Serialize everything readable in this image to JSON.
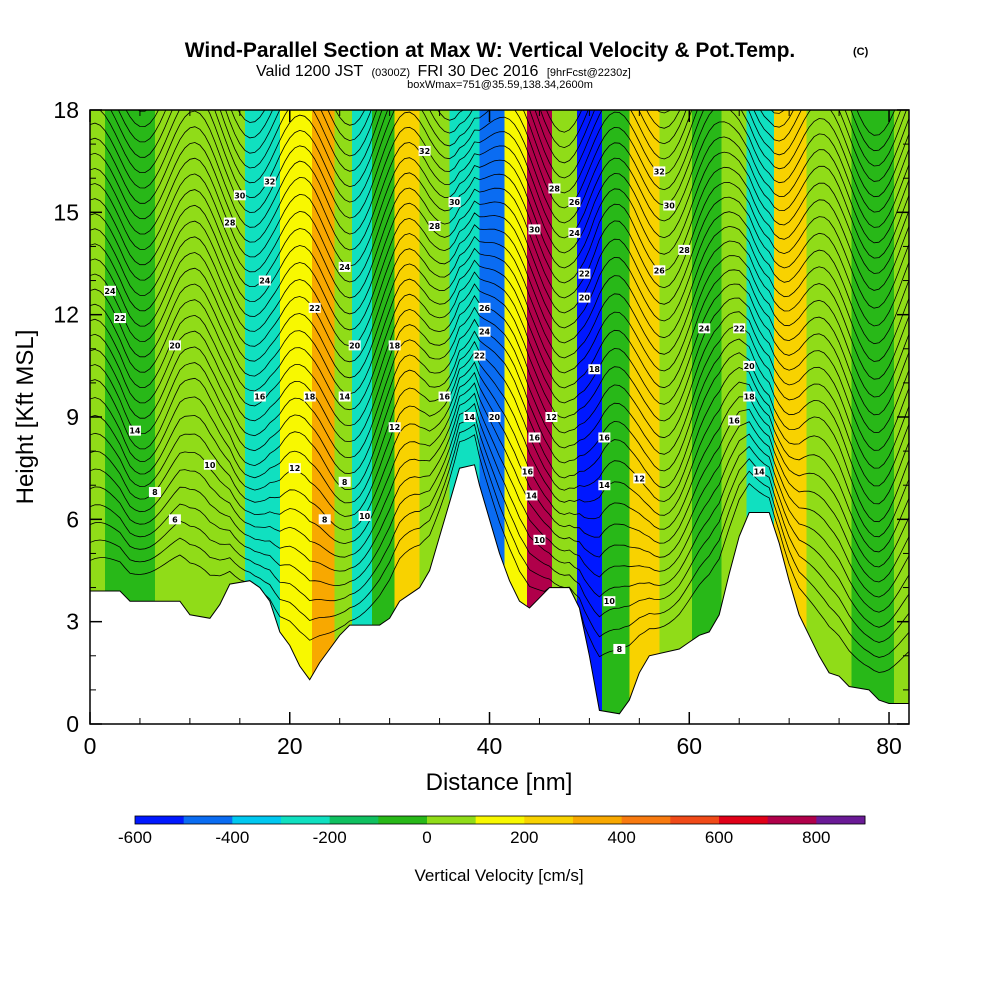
{
  "header": {
    "title": "Wind-Parallel Section at Max W: Vertical Velocity & Pot.Temp.",
    "copyright": "(C)",
    "subtitle_main": "Valid 1200 JST",
    "subtitle_utc": "(0300Z)",
    "subtitle_date": "FRI 30 Dec 2016",
    "subtitle_fcst": "[9hrFcst@2230z]",
    "subtitle_box": "boxWmax=751@35.59,138.34,2600m"
  },
  "chart_data": {
    "type": "heatmap",
    "title": "Wind-Parallel Section at Max W: Vertical Velocity & Pot.Temp.",
    "xlabel": "Distance [nm]",
    "ylabel": "Height [Kft MSL]",
    "xlim": [
      0,
      82
    ],
    "ylim": [
      0,
      18
    ],
    "xticks": [
      "0",
      "20",
      "40",
      "60",
      "80"
    ],
    "yticks": [
      "0",
      "3",
      "6",
      "9",
      "12",
      "15",
      "18"
    ],
    "colorbar": {
      "label": "Vertical Velocity [cm/s]",
      "levels": [
        -600,
        -500,
        -400,
        -300,
        -200,
        -100,
        0,
        100,
        200,
        300,
        400,
        500,
        600,
        700,
        800,
        900
      ],
      "colors": [
        "#0018ff",
        "#0a6cf2",
        "#00c8f0",
        "#10e0c0",
        "#10c060",
        "#28b818",
        "#90dc18",
        "#f8f800",
        "#f8d200",
        "#f8a800",
        "#f87a10",
        "#f04a18",
        "#e00018",
        "#b0004a",
        "#6a1a96"
      ],
      "ticks": [
        "-600",
        "-400",
        "-200",
        "0",
        "200",
        "400",
        "600",
        "800"
      ]
    },
    "terrain": [
      [
        0,
        3.9
      ],
      [
        3,
        3.9
      ],
      [
        4,
        3.6
      ],
      [
        9,
        3.6
      ],
      [
        10,
        3.2
      ],
      [
        12,
        3.1
      ],
      [
        13,
        3.5
      ],
      [
        14,
        4.1
      ],
      [
        16,
        4.2
      ],
      [
        17,
        4.0
      ],
      [
        18,
        3.6
      ],
      [
        19,
        2.7
      ],
      [
        20,
        2.3
      ],
      [
        21,
        1.7
      ],
      [
        22,
        1.3
      ],
      [
        23,
        1.8
      ],
      [
        24,
        2.2
      ],
      [
        25,
        2.6
      ],
      [
        26,
        2.9
      ],
      [
        29,
        2.9
      ],
      [
        30,
        3.1
      ],
      [
        31,
        3.6
      ],
      [
        33,
        4.0
      ],
      [
        34,
        4.5
      ],
      [
        35,
        5.5
      ],
      [
        36,
        6.5
      ],
      [
        37,
        7.5
      ],
      [
        38.5,
        7.6
      ],
      [
        39,
        7.0
      ],
      [
        40,
        6.0
      ],
      [
        41,
        5.0
      ],
      [
        42,
        4.2
      ],
      [
        43,
        3.6
      ],
      [
        44,
        3.4
      ],
      [
        45,
        3.7
      ],
      [
        46,
        4.0
      ],
      [
        48,
        4.0
      ],
      [
        49,
        3.4
      ],
      [
        50,
        2.0
      ],
      [
        51,
        0.4
      ],
      [
        53,
        0.3
      ],
      [
        54,
        0.7
      ],
      [
        55,
        1.5
      ],
      [
        56,
        2.0
      ],
      [
        59,
        2.2
      ],
      [
        60,
        2.4
      ],
      [
        61,
        2.6
      ],
      [
        62,
        2.7
      ],
      [
        63,
        3.2
      ],
      [
        64,
        4.4
      ],
      [
        65,
        5.5
      ],
      [
        66,
        6.2
      ],
      [
        68,
        6.2
      ],
      [
        69,
        5.3
      ],
      [
        70,
        4.2
      ],
      [
        71,
        3.2
      ],
      [
        72,
        2.6
      ],
      [
        73,
        2.0
      ],
      [
        74,
        1.5
      ],
      [
        75,
        1.4
      ],
      [
        76,
        1.1
      ],
      [
        78,
        1.0
      ],
      [
        79,
        0.7
      ],
      [
        80,
        0.6
      ],
      [
        82,
        0.6
      ]
    ],
    "velocity_bands": [
      {
        "x": 0,
        "value": 0
      },
      {
        "x": 3,
        "value": -50
      },
      {
        "x": 10,
        "value": 50
      },
      {
        "x": 14,
        "value": 0
      },
      {
        "x": 17,
        "value": -220
      },
      {
        "x": 21,
        "value": 150
      },
      {
        "x": 23.5,
        "value": 320
      },
      {
        "x": 25.5,
        "value": 60
      },
      {
        "x": 27,
        "value": -230
      },
      {
        "x": 29.5,
        "value": -80
      },
      {
        "x": 31.5,
        "value": 230
      },
      {
        "x": 34.5,
        "value": 0
      },
      {
        "x": 37.5,
        "value": -230
      },
      {
        "x": 40.5,
        "value": -480
      },
      {
        "x": 42.5,
        "value": 130
      },
      {
        "x": 45,
        "value": 750
      },
      {
        "x": 47.5,
        "value": 30
      },
      {
        "x": 50,
        "value": -560
      },
      {
        "x": 52.5,
        "value": -60
      },
      {
        "x": 55.5,
        "value": 220
      },
      {
        "x": 58.5,
        "value": 40
      },
      {
        "x": 62,
        "value": -50
      },
      {
        "x": 64.5,
        "value": 60
      },
      {
        "x": 67,
        "value": -260
      },
      {
        "x": 70,
        "value": 260
      },
      {
        "x": 73.5,
        "value": 40
      },
      {
        "x": 79,
        "value": -40
      },
      {
        "x": 82,
        "value": 0
      }
    ],
    "theta_labels": [
      {
        "x": 2,
        "y": 12.7,
        "text": "24"
      },
      {
        "x": 3,
        "y": 11.9,
        "text": "22"
      },
      {
        "x": 8.5,
        "y": 11.1,
        "text": "20"
      },
      {
        "x": 4.5,
        "y": 8.6,
        "text": "14"
      },
      {
        "x": 12,
        "y": 7.6,
        "text": "10"
      },
      {
        "x": 6.5,
        "y": 6.8,
        "text": "8"
      },
      {
        "x": 8.5,
        "y": 6.0,
        "text": "6"
      },
      {
        "x": 14,
        "y": 14.7,
        "text": "28"
      },
      {
        "x": 15,
        "y": 15.5,
        "text": "30"
      },
      {
        "x": 18,
        "y": 15.9,
        "text": "32"
      },
      {
        "x": 17.5,
        "y": 13.0,
        "text": "24"
      },
      {
        "x": 22.5,
        "y": 12.2,
        "text": "22"
      },
      {
        "x": 17,
        "y": 9.6,
        "text": "16"
      },
      {
        "x": 22,
        "y": 9.6,
        "text": "18"
      },
      {
        "x": 20.5,
        "y": 7.5,
        "text": "12"
      },
      {
        "x": 23.5,
        "y": 6.0,
        "text": "8"
      },
      {
        "x": 25.5,
        "y": 13.4,
        "text": "24"
      },
      {
        "x": 26.5,
        "y": 11.1,
        "text": "20"
      },
      {
        "x": 30.5,
        "y": 11.1,
        "text": "18"
      },
      {
        "x": 25.5,
        "y": 9.6,
        "text": "14"
      },
      {
        "x": 30.5,
        "y": 8.7,
        "text": "12"
      },
      {
        "x": 25.5,
        "y": 7.1,
        "text": "8"
      },
      {
        "x": 27.5,
        "y": 6.1,
        "text": "10"
      },
      {
        "x": 33.5,
        "y": 16.8,
        "text": "32"
      },
      {
        "x": 36.5,
        "y": 15.3,
        "text": "30"
      },
      {
        "x": 34.5,
        "y": 14.6,
        "text": "28"
      },
      {
        "x": 35.5,
        "y": 9.6,
        "text": "16"
      },
      {
        "x": 38,
        "y": 9.0,
        "text": "14"
      },
      {
        "x": 39.5,
        "y": 12.2,
        "text": "26"
      },
      {
        "x": 39.5,
        "y": 11.5,
        "text": "24"
      },
      {
        "x": 39,
        "y": 10.8,
        "text": "22"
      },
      {
        "x": 40.5,
        "y": 9.0,
        "text": "20"
      },
      {
        "x": 44.5,
        "y": 14.5,
        "text": "30"
      },
      {
        "x": 46.5,
        "y": 15.7,
        "text": "28"
      },
      {
        "x": 44.5,
        "y": 8.4,
        "text": "16"
      },
      {
        "x": 46.2,
        "y": 9.0,
        "text": "12"
      },
      {
        "x": 43.8,
        "y": 7.4,
        "text": "16"
      },
      {
        "x": 44.2,
        "y": 6.7,
        "text": "14"
      },
      {
        "x": 45,
        "y": 5.4,
        "text": "10"
      },
      {
        "x": 48.5,
        "y": 15.3,
        "text": "26"
      },
      {
        "x": 48.5,
        "y": 14.4,
        "text": "24"
      },
      {
        "x": 49.5,
        "y": 13.2,
        "text": "22"
      },
      {
        "x": 49.5,
        "y": 12.5,
        "text": "20"
      },
      {
        "x": 50.5,
        "y": 10.4,
        "text": "18"
      },
      {
        "x": 51.5,
        "y": 8.4,
        "text": "16"
      },
      {
        "x": 51.5,
        "y": 7.0,
        "text": "14"
      },
      {
        "x": 55,
        "y": 7.2,
        "text": "12"
      },
      {
        "x": 52,
        "y": 3.6,
        "text": "10"
      },
      {
        "x": 53,
        "y": 2.2,
        "text": "8"
      },
      {
        "x": 57,
        "y": 16.2,
        "text": "32"
      },
      {
        "x": 58,
        "y": 15.2,
        "text": "30"
      },
      {
        "x": 59.5,
        "y": 13.9,
        "text": "28"
      },
      {
        "x": 57,
        "y": 13.3,
        "text": "26"
      },
      {
        "x": 61.5,
        "y": 11.6,
        "text": "24"
      },
      {
        "x": 65,
        "y": 11.6,
        "text": "22"
      },
      {
        "x": 66,
        "y": 10.5,
        "text": "20"
      },
      {
        "x": 66,
        "y": 9.6,
        "text": "18"
      },
      {
        "x": 64.5,
        "y": 8.9,
        "text": "16"
      },
      {
        "x": 67,
        "y": 7.4,
        "text": "14"
      }
    ]
  }
}
